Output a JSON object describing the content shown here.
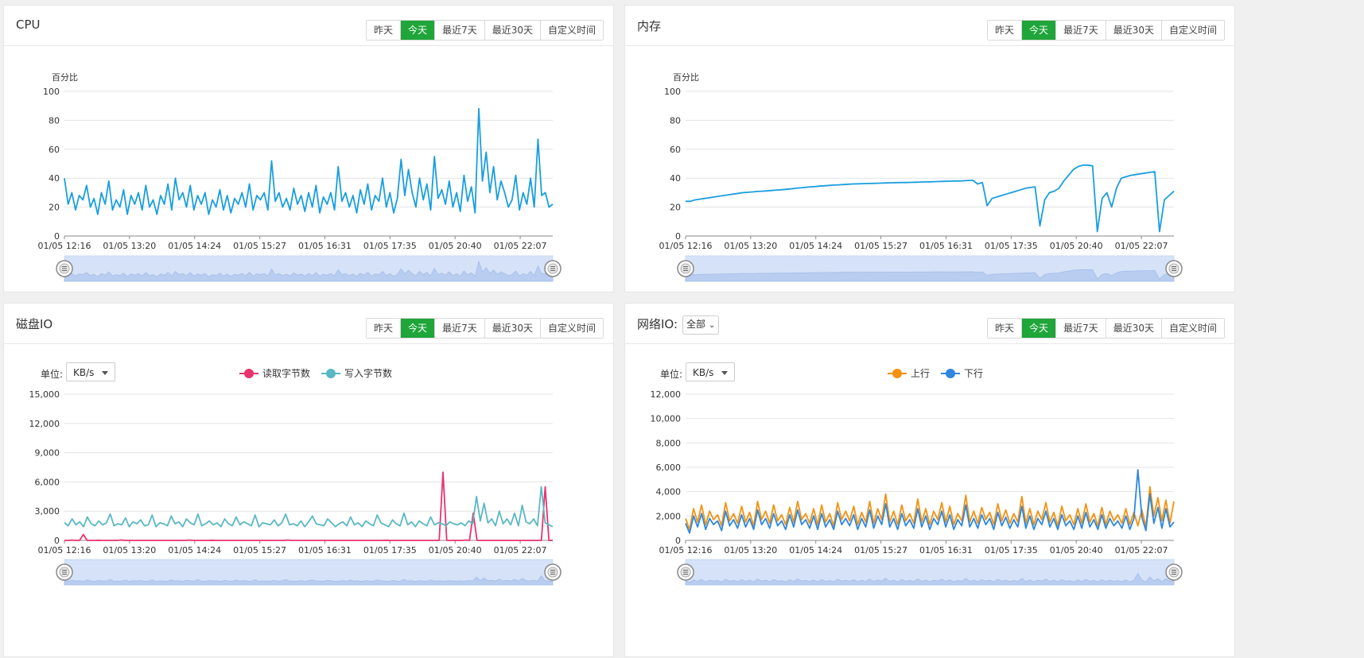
{
  "panels": {
    "cpu": {
      "title": "CPU"
    },
    "memory": {
      "title": "内存"
    },
    "disk": {
      "title": "磁盘IO"
    },
    "network": {
      "title": "网络IO:",
      "filter_value": "全部"
    }
  },
  "time_buttons": [
    "昨天",
    "今天",
    "最近7天",
    "最近30天",
    "自定义时间"
  ],
  "active_button": "今天",
  "unit": {
    "label": "单位:",
    "value": "KB/s"
  },
  "colors": {
    "accent": "#20a53a",
    "cpu_line": "#1a9ee0",
    "disk_read": "#e8336e",
    "disk_write": "#5ab8c4",
    "net_up": "#f39211",
    "net_down": "#2e87e0",
    "zoom_fill": "#d5e2f8"
  },
  "chart_data": [
    {
      "id": "cpu",
      "type": "line",
      "ylabel": "百分比",
      "ylim": [
        0,
        100
      ],
      "yticks": [
        "0",
        "20",
        "40",
        "60",
        "80",
        "100"
      ],
      "x_tick_labels": [
        "01/05 12:16",
        "01/05 13:20",
        "01/05 14:24",
        "01/05 15:27",
        "01/05 16:31",
        "01/05 17:35",
        "01/05 20:40",
        "01/05 22:07"
      ],
      "series": [
        {
          "color": "cpu_line",
          "values": [
            40,
            22,
            30,
            18,
            28,
            25,
            35,
            20,
            26,
            15,
            30,
            22,
            38,
            18,
            25,
            20,
            32,
            15,
            28,
            22,
            30,
            18,
            35,
            20,
            25,
            15,
            28,
            22,
            36,
            18,
            40,
            25,
            30,
            20,
            35,
            18,
            28,
            22,
            30,
            15,
            25,
            20,
            32,
            18,
            28,
            16,
            26,
            22,
            30,
            20,
            36,
            18,
            28,
            25,
            30,
            18,
            52,
            24,
            30,
            20,
            26,
            18,
            33,
            22,
            28,
            17,
            30,
            20,
            35,
            16,
            27,
            22,
            30,
            18,
            48,
            24,
            30,
            20,
            28,
            16,
            32,
            22,
            36,
            18,
            28,
            24,
            40,
            20,
            30,
            16,
            26,
            53,
            28,
            46,
            30,
            20,
            40,
            25,
            36,
            18,
            55,
            26,
            32,
            22,
            38,
            20,
            30,
            17,
            42,
            24,
            34,
            16,
            88,
            38,
            58,
            30,
            48,
            25,
            38,
            30,
            20,
            25,
            42,
            18,
            30,
            22,
            40,
            20,
            67,
            28,
            30,
            20,
            22
          ]
        }
      ]
    },
    {
      "id": "memory",
      "type": "line",
      "ylabel": "百分比",
      "ylim": [
        0,
        100
      ],
      "yticks": [
        "0",
        "20",
        "40",
        "60",
        "80",
        "100"
      ],
      "x_tick_labels": [
        "01/05 12:16",
        "01/05 13:20",
        "01/05 14:24",
        "01/05 15:27",
        "01/05 16:31",
        "01/05 17:35",
        "01/05 20:40",
        "01/05 22:07"
      ],
      "series": [
        {
          "color": "cpu_line",
          "values": [
            24,
            24,
            25,
            25.5,
            26,
            26.5,
            27,
            27.5,
            28,
            28.5,
            29,
            29.5,
            30,
            30.2,
            30.5,
            30.8,
            31,
            31.2,
            31.5,
            31.8,
            32,
            32.3,
            32.6,
            33,
            33.3,
            33.6,
            34,
            34.2,
            34.5,
            34.7,
            35,
            35.2,
            35.4,
            35.6,
            35.8,
            36,
            36.1,
            36.2,
            36.3,
            36.4,
            36.5,
            36.6,
            36.7,
            36.8,
            36.9,
            37,
            37,
            37.1,
            37.2,
            37.3,
            37.4,
            37.5,
            37.6,
            37.7,
            37.8,
            37.9,
            38,
            38,
            38.2,
            38.4,
            38.5,
            36,
            37,
            21,
            26,
            27,
            28,
            29,
            30,
            31,
            32,
            33,
            33.5,
            34,
            7,
            25,
            30,
            31,
            33,
            38,
            42,
            46,
            48,
            49,
            49,
            48.5,
            3,
            26,
            30,
            20,
            33,
            40,
            41,
            42,
            42.5,
            43,
            43.5,
            44,
            44.5,
            3,
            25,
            28,
            31
          ]
        }
      ]
    },
    {
      "id": "disk",
      "type": "line",
      "ylim": [
        0,
        15000
      ],
      "yticks": [
        "0",
        "3,000",
        "6,000",
        "9,000",
        "12,000",
        "15,000"
      ],
      "x_tick_labels": [
        "01/05 12:16",
        "01/05 13:20",
        "01/05 14:24",
        "01/05 15:27",
        "01/05 16:31",
        "01/05 17:35",
        "01/05 20:40",
        "01/05 22:07"
      ],
      "series": [
        {
          "name": "读取字节数",
          "color": "disk_read",
          "values": [
            0,
            0,
            30,
            0,
            0,
            600,
            0,
            0,
            0,
            20,
            0,
            0,
            0,
            0,
            0,
            40,
            0,
            0,
            0,
            0,
            0,
            0,
            0,
            0,
            0,
            0,
            0,
            0,
            0,
            0,
            0,
            0,
            0,
            30,
            0,
            0,
            0,
            0,
            0,
            20,
            0,
            0,
            0,
            0,
            0,
            0,
            0,
            0,
            0,
            0,
            0,
            0,
            0,
            0,
            0,
            0,
            0,
            0,
            0,
            30,
            0,
            0,
            0,
            0,
            0,
            0,
            0,
            0,
            0,
            0,
            0,
            0,
            0,
            0,
            0,
            0,
            0,
            0,
            0,
            0,
            0,
            0,
            0,
            0,
            0,
            20,
            0,
            0,
            0,
            0,
            0,
            0,
            0,
            0,
            0,
            0,
            0,
            0,
            0,
            0,
            7000,
            0,
            0,
            0,
            0,
            0,
            30,
            0,
            2800,
            0,
            0,
            0,
            0,
            0,
            0,
            0,
            0,
            0,
            0,
            0,
            0,
            0,
            0,
            0,
            0,
            0,
            0,
            5500,
            0,
            0
          ]
        },
        {
          "name": "写入字节数",
          "color": "disk_write",
          "values": [
            1800,
            1500,
            2200,
            1600,
            1900,
            1400,
            2400,
            1700,
            1500,
            2000,
            1600,
            1800,
            2700,
            1500,
            1700,
            1600,
            2300,
            1400,
            1900,
            1700,
            2100,
            1500,
            1600,
            2600,
            1400,
            1800,
            1700,
            1500,
            2500,
            1700,
            1900,
            1400,
            2200,
            1800,
            1600,
            2700,
            1500,
            1700,
            2000,
            1600,
            1800,
            1400,
            2200,
            1700,
            1500,
            2400,
            1600,
            1900,
            1700,
            1500,
            2600,
            1400,
            1800,
            1700,
            1600,
            2100,
            1500,
            1800,
            2700,
            1600,
            1700,
            1500,
            2000,
            1400,
            1900,
            2500,
            1700,
            1600,
            1500,
            2200,
            1800,
            1400,
            1700,
            1900,
            1500,
            2400,
            1600,
            1800,
            1400,
            2000,
            1700,
            1500,
            2600,
            1800,
            1600,
            1400,
            2100,
            1700,
            1500,
            2800,
            1600,
            1900,
            1400,
            2000,
            1700,
            1500,
            2400,
            1600,
            1800,
            1700,
            1500,
            1900,
            1700,
            1600,
            1800,
            1500,
            2000,
            1700,
            4500,
            2000,
            3800,
            1800,
            2200,
            1500,
            3000,
            1700,
            2200,
            1600,
            2800,
            1500,
            3600,
            1900,
            1700,
            2200,
            1500,
            5500,
            1800,
            1600,
            1400
          ]
        }
      ]
    },
    {
      "id": "network",
      "type": "line",
      "ylim": [
        0,
        12000
      ],
      "yticks": [
        "0",
        "2,000",
        "4,000",
        "6,000",
        "8,000",
        "10,000",
        "12,000"
      ],
      "x_tick_labels": [
        "01/05 12:16",
        "01/05 13:20",
        "01/05 14:24",
        "01/05 15:27",
        "01/05 16:31",
        "01/05 17:35",
        "01/05 20:40",
        "01/05 22:07"
      ],
      "series": [
        {
          "name": "上行",
          "color": "net_up",
          "values": [
            1800,
            900,
            2600,
            1500,
            2900,
            1300,
            2400,
            1700,
            2100,
            1200,
            3100,
            1600,
            2200,
            1400,
            2800,
            1500,
            2300,
            1200,
            3200,
            1700,
            2400,
            1400,
            2900,
            1600,
            2100,
            1300,
            2700,
            1500,
            3200,
            1700,
            2200,
            1400,
            2600,
            1300,
            2900,
            1500,
            2200,
            1200,
            3100,
            1700,
            2400,
            1600,
            2800,
            1300,
            2300,
            1500,
            3200,
            1400,
            2600,
            1700,
            3800,
            1500,
            2400,
            1300,
            2900,
            1600,
            2200,
            1400,
            3400,
            1500,
            2600,
            1300,
            2400,
            1700,
            3100,
            1500,
            2800,
            1300,
            2200,
            1600,
            3700,
            1500,
            2400,
            1400,
            2700,
            1700,
            2300,
            1300,
            3000,
            1600,
            2500,
            1400,
            2200,
            1500,
            3600,
            1400,
            2600,
            1300,
            2400,
            1700,
            3100,
            1500,
            2300,
            1200,
            2800,
            1600,
            2100,
            1300,
            2600,
            1400,
            3000,
            1500,
            2200,
            1200,
            2700,
            1300,
            2400,
            1600,
            2100,
            1400,
            2600,
            1300,
            2300,
            1200,
            2500,
            1100,
            4400,
            2000,
            3500,
            1600,
            3300,
            1400,
            3200
          ]
        },
        {
          "name": "下行",
          "color": "net_down",
          "values": [
            1400,
            600,
            2000,
            1100,
            2200,
            900,
            1800,
            1300,
            1600,
            800,
            2400,
            1200,
            1700,
            1000,
            2100,
            1100,
            1800,
            900,
            2500,
            1300,
            1800,
            1000,
            2200,
            1200,
            1600,
            900,
            2100,
            1100,
            2500,
            1300,
            1700,
            1000,
            2000,
            900,
            2200,
            1100,
            1700,
            900,
            2400,
            1300,
            1800,
            1200,
            2100,
            900,
            1800,
            1100,
            2500,
            1000,
            2000,
            1300,
            3000,
            1100,
            1800,
            900,
            2200,
            1200,
            1700,
            1000,
            2600,
            1100,
            2000,
            900,
            1800,
            1300,
            2400,
            1100,
            2100,
            900,
            1700,
            1200,
            2900,
            1100,
            1800,
            1000,
            2100,
            1300,
            1800,
            900,
            2300,
            1200,
            1900,
            1000,
            1700,
            1100,
            2800,
            1000,
            2000,
            900,
            1800,
            1300,
            2400,
            1100,
            1800,
            900,
            2100,
            1200,
            1600,
            900,
            2000,
            1000,
            2300,
            1100,
            1700,
            900,
            2100,
            1000,
            1800,
            1200,
            1600,
            1000,
            2000,
            900,
            1800,
            5800,
            1900,
            800,
            3800,
            1400,
            2700,
            1000,
            2600,
            1100,
            1500
          ]
        }
      ]
    }
  ]
}
